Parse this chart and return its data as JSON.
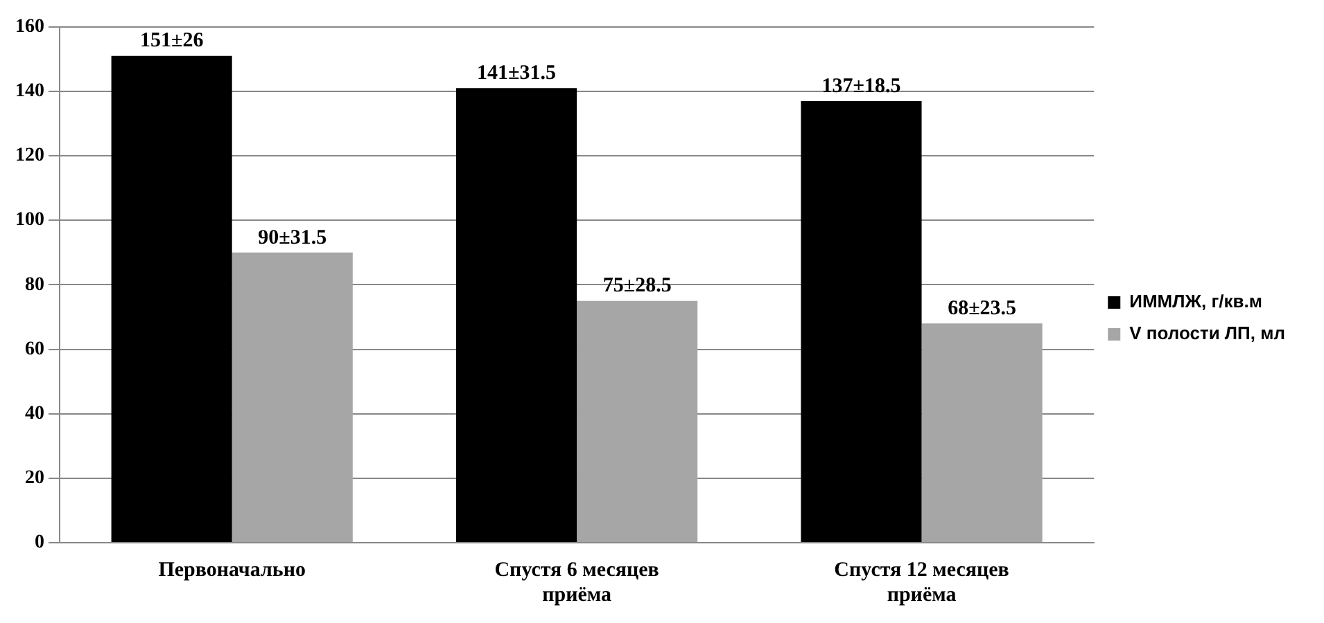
{
  "chart_data": {
    "type": "bar",
    "categories": [
      "Первоначально",
      "Спустя 6 месяцев приёма",
      "Спустя 12 месяцев приёма"
    ],
    "series": [
      {
        "name": "ИММЛЖ, г/кв.м",
        "color": "#000000",
        "values": [
          151,
          141,
          137
        ],
        "value_labels": [
          "151±26",
          "141±31.5",
          "137±18.5"
        ]
      },
      {
        "name": "V полости ЛП, мл",
        "color": "#a6a6a6",
        "values": [
          90,
          75,
          68
        ],
        "value_labels": [
          "90±31.5",
          "75±28.5",
          "68±23.5"
        ]
      }
    ],
    "ylim": [
      0,
      160
    ],
    "yticks": [
      0,
      20,
      40,
      60,
      80,
      100,
      120,
      140,
      160
    ],
    "grid": "y",
    "legend": "right"
  }
}
